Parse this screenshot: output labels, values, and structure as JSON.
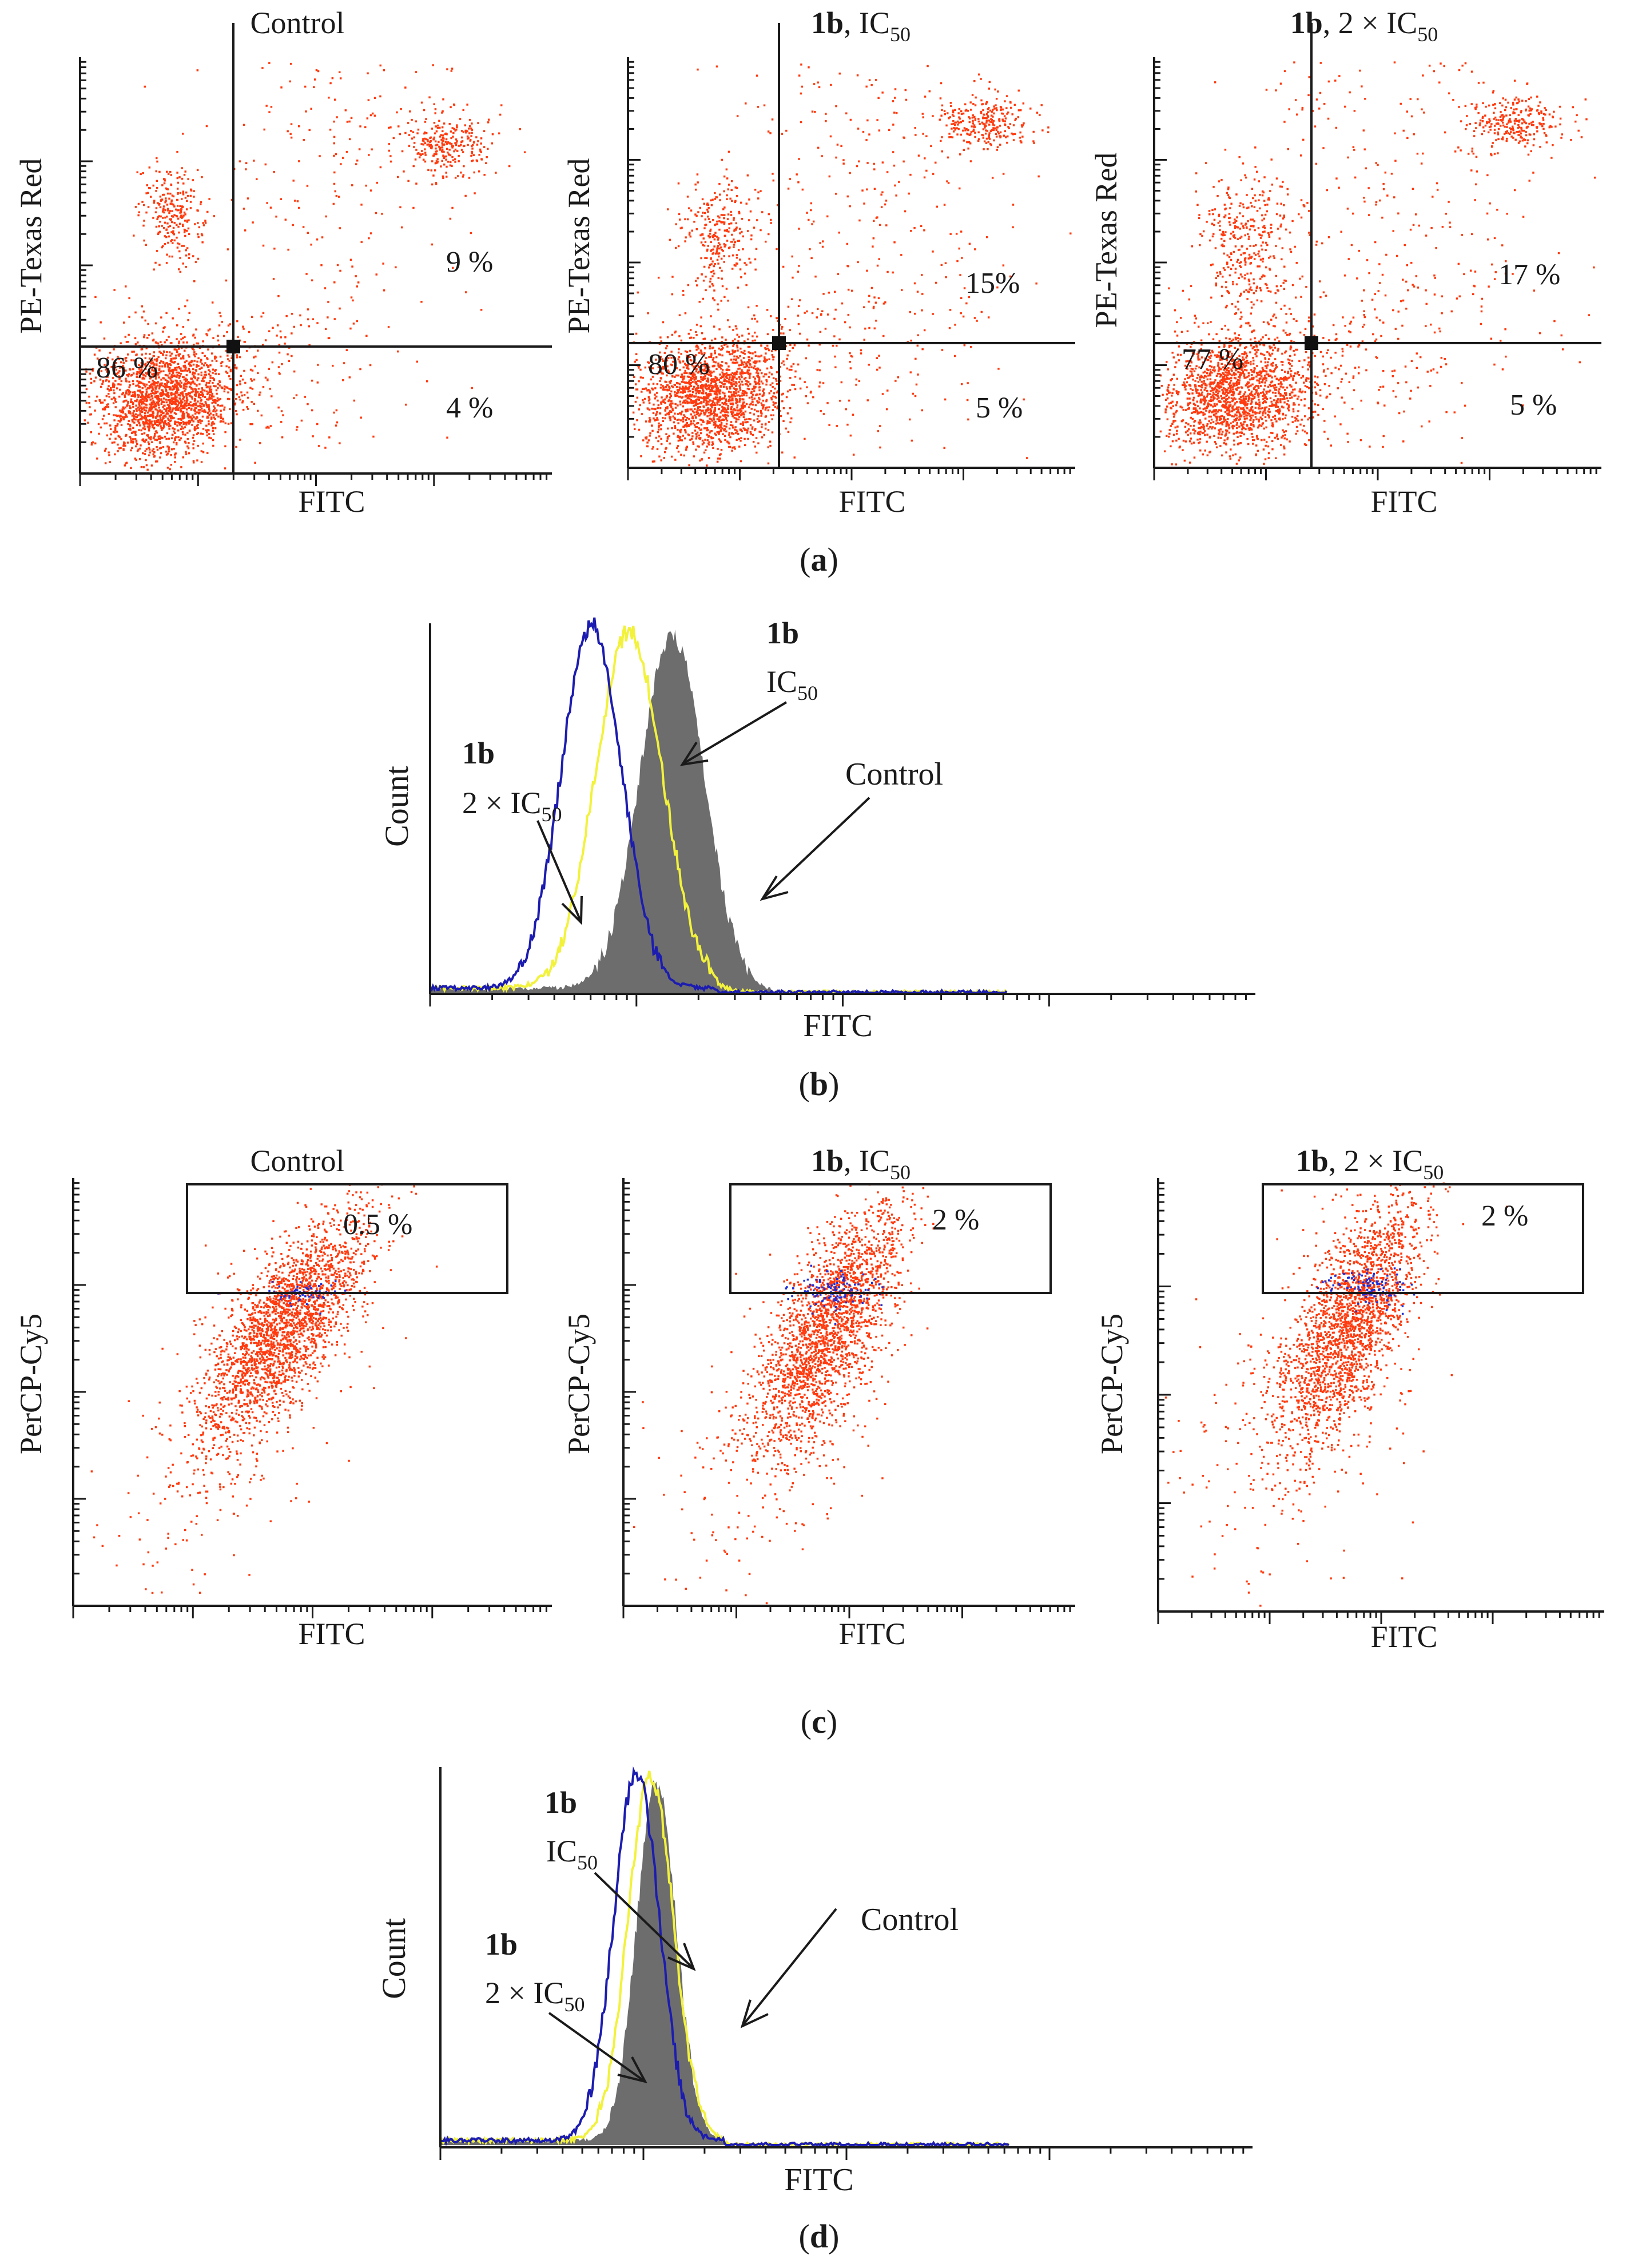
{
  "colors": {
    "dots": "#ff3b0f",
    "gate_dots": "#1f2fd6",
    "control_fill": "#6d6d6d",
    "ic50_line": "#f2f23c",
    "ic50x2_line": "#1c1cb0",
    "axis": "#1a1a1a"
  },
  "chart_data": [
    {
      "id": "a",
      "type": "scatter",
      "panel_label": "a",
      "ylabel": "PE-Texas Red",
      "xlabel": "FITC",
      "axis_scale": "log",
      "plots": [
        {
          "title_bold": "",
          "title_rest": "Control",
          "quadrants": {
            "lower_left": "86 %",
            "upper_right": "9 %",
            "lower_right": "4 %"
          }
        },
        {
          "title_bold": "1b",
          "title_rest": ", IC",
          "title_sub": "50",
          "quadrants": {
            "lower_left": "80 %",
            "upper_right": "15%",
            "lower_right": "5 %"
          }
        },
        {
          "title_bold": "1b",
          "title_rest": ", 2 × IC",
          "title_sub": "50",
          "quadrants": {
            "lower_left": "77 %",
            "upper_right": "17 %",
            "lower_right": "5 %"
          }
        }
      ]
    },
    {
      "id": "b",
      "type": "area",
      "panel_label": "b",
      "ylabel": "Count",
      "xlabel": "FITC",
      "series": [
        {
          "name": "Control",
          "label": "Control",
          "style": "filled",
          "peak_x": 0.42,
          "width": 0.056,
          "height": 0.95
        },
        {
          "name": "1b IC50",
          "label_bold": "1b",
          "label_rest": "IC",
          "label_sub": "50",
          "style": "line",
          "peak_x": 0.345,
          "width": 0.058,
          "height": 0.96
        },
        {
          "name": "1b 2 × IC50",
          "label_bold": "1b",
          "label_rest": "2 × IC",
          "label_sub": "50",
          "style": "line",
          "peak_x": 0.28,
          "width": 0.052,
          "height": 0.98
        }
      ]
    },
    {
      "id": "c",
      "type": "scatter",
      "panel_label": "c",
      "ylabel": "PerCP-Cy5",
      "xlabel": "FITC",
      "axis_scale": "log",
      "plots": [
        {
          "title_bold": "",
          "title_rest": "Control",
          "gate_label": "0.5  %"
        },
        {
          "title_bold": "1b",
          "title_rest": ", IC",
          "title_sub": "50",
          "gate_label": "2 %"
        },
        {
          "title_bold": "1b",
          "title_rest": ", 2 × IC",
          "title_sub": "50",
          "gate_label": "2 %"
        }
      ]
    },
    {
      "id": "d",
      "type": "area",
      "panel_label": "d",
      "ylabel": "Count",
      "xlabel": "FITC",
      "series": [
        {
          "name": "Control",
          "label": "Control",
          "style": "filled",
          "peak_x": 0.38,
          "width": 0.035,
          "height": 0.94
        },
        {
          "name": "1b IC50",
          "label_bold": "1b",
          "label_rest": "IC",
          "label_sub": "50",
          "style": "line",
          "peak_x": 0.37,
          "width": 0.04,
          "height": 0.96
        },
        {
          "name": "1b 2 × IC50",
          "label_bold": "1b",
          "label_rest": "2 × IC",
          "label_sub": "50",
          "style": "line",
          "peak_x": 0.345,
          "width": 0.04,
          "height": 0.97
        }
      ]
    }
  ]
}
